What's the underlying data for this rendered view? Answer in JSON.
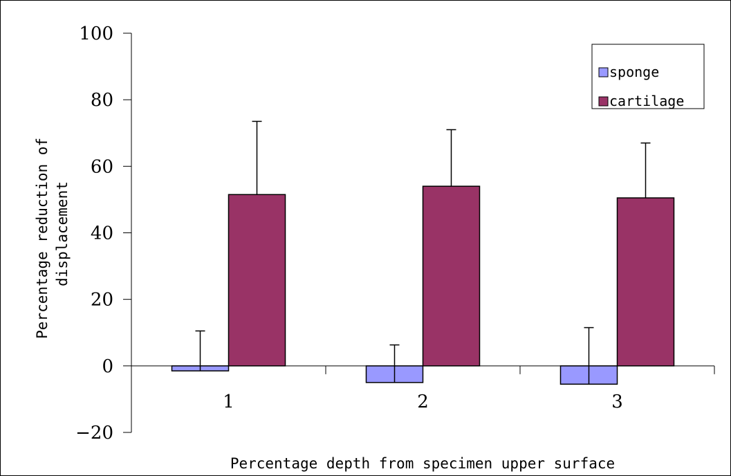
{
  "chart_data": {
    "type": "bar",
    "categories": [
      "1",
      "2",
      "3"
    ],
    "series": [
      {
        "name": "sponge",
        "color": "#9999ff",
        "values": [
          -1.5,
          -5,
          -5.5
        ],
        "error_plus": [
          12,
          11.3,
          17
        ]
      },
      {
        "name": "cartilage",
        "color": "#993366",
        "values": [
          51.5,
          54,
          50.5
        ],
        "error_plus": [
          22,
          17,
          16.5
        ]
      }
    ],
    "title": "",
    "xlabel": "Percentage depth from specimen upper surface",
    "ylabel_lines": [
      "Percentage reduction of",
      "displacement"
    ],
    "ylim": [
      -20,
      100
    ],
    "yticks": [
      -20,
      0,
      20,
      40,
      60,
      80,
      100
    ],
    "ytick_labels": [
      "−20",
      "0",
      "20",
      "40",
      "60",
      "80",
      "100"
    ],
    "grid": false,
    "legend_position": "top-right"
  }
}
